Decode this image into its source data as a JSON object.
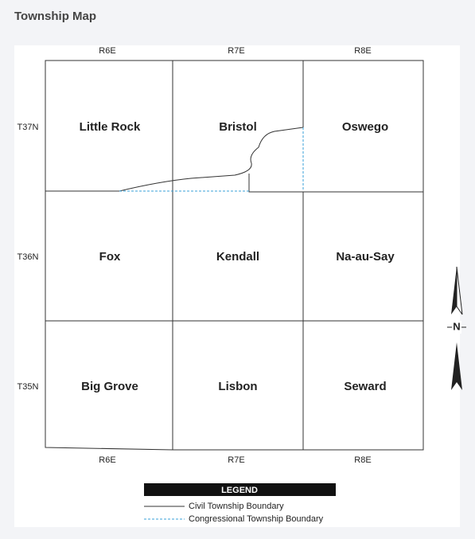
{
  "header": {
    "title": "Township Map"
  },
  "map": {
    "columns_top": [
      "R6E",
      "R7E",
      "R8E"
    ],
    "columns_bottom": [
      "R6E",
      "R7E",
      "R8E"
    ],
    "rows": [
      "T37N",
      "T36N",
      "T35N"
    ],
    "townships": [
      [
        "Little Rock",
        "Bristol",
        "Oswego"
      ],
      [
        "Fox",
        "Kendall",
        "Na-au-Say"
      ],
      [
        "Big Grove",
        "Lisbon",
        "Seward"
      ]
    ],
    "north": "N"
  },
  "legend": {
    "title": "LEGEND",
    "items": [
      "Civil Township Boundary",
      "Congressional Township Boundary"
    ]
  }
}
